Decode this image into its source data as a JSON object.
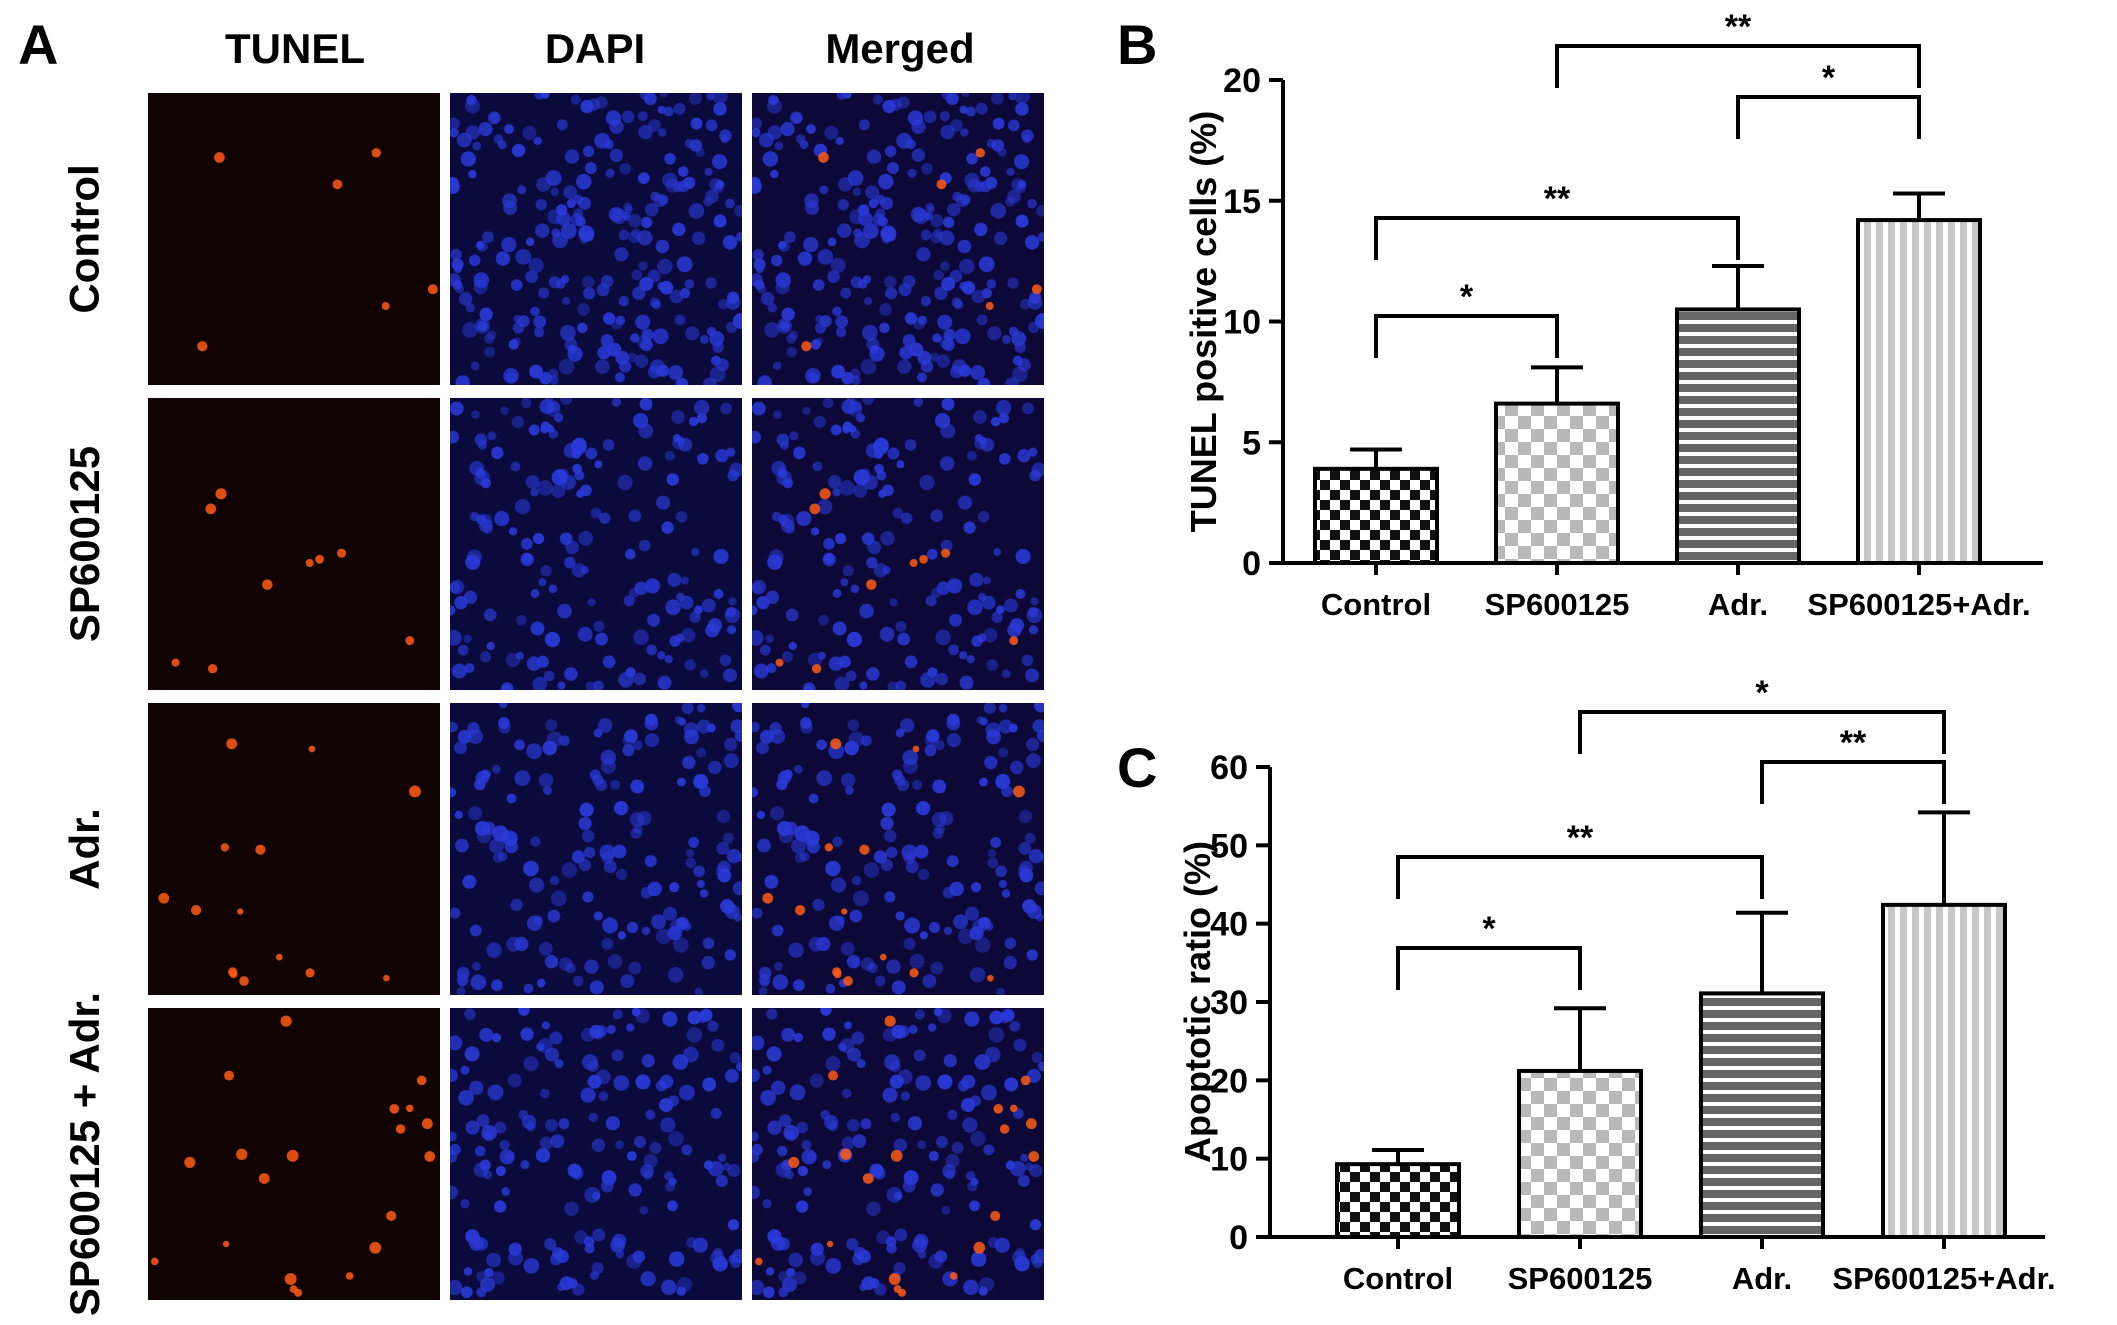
{
  "figure": {
    "panel_a": {
      "letter": "A",
      "columns": [
        "TUNEL",
        "DAPI",
        "Merged"
      ],
      "rows": [
        "Control",
        "SP600125",
        "Adr.",
        "SP600125 + Adr."
      ]
    },
    "panel_b_letter": "B",
    "panel_c_letter": "C"
  },
  "chart_data": [
    {
      "type": "bar",
      "panel": "B",
      "categories": [
        "Control",
        "SP600125",
        "Adr.",
        "SP600125+Adr."
      ],
      "values": [
        3.9,
        6.6,
        10.5,
        14.2
      ],
      "errors": [
        0.8,
        1.5,
        1.8,
        1.1
      ],
      "ylabel": "TUNEL positive cells (%)",
      "ylim": [
        0,
        20
      ],
      "yticks": [
        0,
        5,
        10,
        15,
        20
      ],
      "patterns": [
        "checker-dark",
        "checker-light",
        "hstripe",
        "vstripe"
      ],
      "significance": [
        {
          "from": 0,
          "to": 1,
          "label": "*"
        },
        {
          "from": 0,
          "to": 2,
          "label": "**"
        },
        {
          "from": 2,
          "to": 3,
          "label": "*"
        },
        {
          "from": 1,
          "to": 3,
          "label": "**"
        }
      ]
    },
    {
      "type": "bar",
      "panel": "C",
      "categories": [
        "Control",
        "SP600125",
        "Adr.",
        "SP600125+Adr."
      ],
      "values": [
        9.3,
        21.2,
        31.1,
        42.4
      ],
      "errors": [
        1.8,
        8.0,
        10.3,
        11.8
      ],
      "ylabel": "Apoptotic ratio (%)",
      "ylim": [
        0,
        60
      ],
      "yticks": [
        0,
        10,
        20,
        30,
        40,
        50,
        60
      ],
      "patterns": [
        "checker-dark",
        "checker-light",
        "hstripe",
        "vstripe"
      ],
      "significance": [
        {
          "from": 0,
          "to": 1,
          "label": "*"
        },
        {
          "from": 0,
          "to": 2,
          "label": "**"
        },
        {
          "from": 2,
          "to": 3,
          "label": "**"
        },
        {
          "from": 1,
          "to": 3,
          "label": "*"
        }
      ]
    }
  ],
  "colors": {
    "tunel_bg": "#120303",
    "tunel_dot": "#ff5a14",
    "dapi_bg": "#0a0a3c",
    "dapi_nucleus": "#2a3ad8",
    "merged_bg": "#0c0838",
    "axis": "#000000"
  }
}
